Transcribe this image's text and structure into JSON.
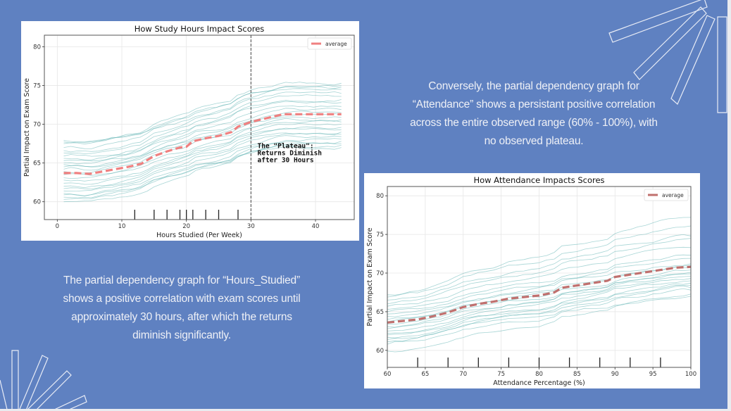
{
  "slide": {
    "background_color": "#5f81c1",
    "text_color": "#eef0f6",
    "caption_right": [
      "Conversely, the partial dependency graph for",
      "“Attendance” shows a persistant positive correlation",
      "across the entire observed range (60% - 100%), with",
      "no observed plateau."
    ],
    "caption_left": [
      "The partial dependency graph for “Hours_Studied”",
      "shows a positive correlation with exam scores until",
      "approximately 30 hours, after which the returns",
      "diminish significantly."
    ]
  },
  "chart_data": [
    {
      "type": "line",
      "title": "How Study Hours Impact Scores",
      "xlabel": "Hours Studied (Per Week)",
      "ylabel": "Partial Impact on Exam Score",
      "xlim": [
        -2,
        46
      ],
      "ylim": [
        57.7,
        81.5
      ],
      "xticks": [
        0,
        10,
        20,
        30,
        40
      ],
      "yticks": [
        60,
        65,
        70,
        75,
        80
      ],
      "grid": true,
      "legend": {
        "position": "top-right",
        "entries": [
          "average"
        ]
      },
      "average_color": "#f08080",
      "ice_color": "#5fb3b3",
      "series": [
        {
          "name": "average",
          "x": [
            1,
            3,
            5,
            7,
            9,
            11,
            13,
            15,
            17,
            19,
            20,
            21,
            23,
            25,
            27,
            28,
            30,
            33,
            35,
            40,
            44
          ],
          "values": [
            63.7,
            63.7,
            63.6,
            63.9,
            64.2,
            64.5,
            64.9,
            65.9,
            66.5,
            67.0,
            67.1,
            67.8,
            68.2,
            68.5,
            69.0,
            69.7,
            70.3,
            70.9,
            71.3,
            71.3,
            71.3
          ]
        }
      ],
      "ice_start_values": [
        67.9,
        67.7,
        67.5,
        67.0,
        66.6,
        66.3,
        65.9,
        65.6,
        65.3,
        65.0,
        64.8,
        64.5,
        64.2,
        63.9,
        63.5,
        63.1,
        62.8,
        62.4,
        62.0,
        61.7,
        61.4,
        61.1,
        60.9,
        60.6,
        60.3,
        60.0
      ],
      "ice_end_values": [
        75.3,
        75.0,
        74.8,
        74.5,
        74.0,
        73.6,
        73.2,
        72.8,
        72.3,
        71.9,
        71.5,
        71.2,
        70.9,
        70.6,
        70.3,
        70.0,
        69.6,
        69.3,
        69.0,
        68.7,
        68.4,
        68.1,
        67.8,
        67.5,
        67.3,
        67.0
      ],
      "rug_x": [
        12,
        15,
        17,
        19,
        20,
        21,
        23,
        25,
        28
      ],
      "vline": {
        "x": 30,
        "style": "dashed"
      },
      "annotation": {
        "lines": [
          "The \"Plateau\":",
          "Returns Diminish",
          "after 30 Hours"
        ],
        "x": 31,
        "y": 66.9
      }
    },
    {
      "type": "line",
      "title": "How Attendance Impacts Scores",
      "xlabel": "Attendance Percentage (%)",
      "ylabel": "Partial Impact on Exam Score",
      "xlim": [
        60,
        100
      ],
      "ylim": [
        57.8,
        81.2
      ],
      "xticks": [
        60,
        65,
        70,
        75,
        80,
        85,
        90,
        95,
        100
      ],
      "yticks": [
        60,
        65,
        70,
        75,
        80
      ],
      "grid": true,
      "legend": {
        "position": "top-right",
        "entries": [
          "average"
        ]
      },
      "average_color": "#c0706e",
      "ice_color": "#5fb3b3",
      "series": [
        {
          "name": "average",
          "x": [
            60,
            62,
            64,
            66,
            68,
            70,
            72,
            74,
            76,
            78,
            80,
            82,
            83,
            85,
            87,
            89,
            90,
            92,
            94,
            96,
            98,
            100
          ],
          "values": [
            63.6,
            63.8,
            64.0,
            64.4,
            64.9,
            65.6,
            66.0,
            66.3,
            66.7,
            66.9,
            67.1,
            67.5,
            68.1,
            68.4,
            68.7,
            69.0,
            69.5,
            69.8,
            70.1,
            70.4,
            70.7,
            70.8
          ]
        }
      ],
      "ice_start_values": [
        67.2,
        66.9,
        66.5,
        66.0,
        65.7,
        65.3,
        65.0,
        64.7,
        64.4,
        64.0,
        63.7,
        63.4,
        63.1,
        62.8,
        62.5,
        62.2,
        62.0,
        61.7,
        61.4,
        61.1,
        60.8,
        59.9
      ],
      "ice_end_values": [
        77.2,
        76.1,
        74.8,
        74.5,
        73.3,
        72.3,
        71.9,
        71.2,
        71.0,
        70.7,
        70.4,
        70.1,
        69.9,
        69.6,
        69.3,
        69.0,
        68.7,
        68.4,
        68.1,
        67.8,
        67.3,
        67.0
      ],
      "rug_x": [
        64,
        68,
        72,
        76,
        80,
        84,
        88,
        92,
        96
      ]
    }
  ]
}
